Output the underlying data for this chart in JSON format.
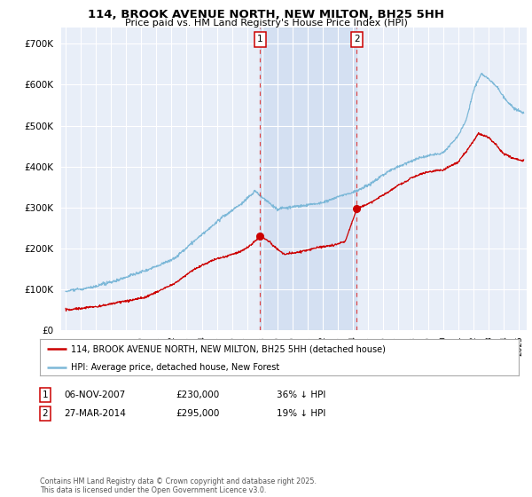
{
  "title": "114, BROOK AVENUE NORTH, NEW MILTON, BH25 5HH",
  "subtitle": "Price paid vs. HM Land Registry's House Price Index (HPI)",
  "ytick_vals": [
    0,
    100000,
    200000,
    300000,
    400000,
    500000,
    600000,
    700000
  ],
  "ylim": [
    0,
    740000
  ],
  "xlim_start": 1994.7,
  "xlim_end": 2025.5,
  "marker1_date": 2007.85,
  "marker2_date": 2014.24,
  "marker1_text": "06-NOV-2007",
  "marker1_price": "£230,000",
  "marker1_hpi": "36% ↓ HPI",
  "marker2_text": "27-MAR-2014",
  "marker2_price": "£295,000",
  "marker2_hpi": "19% ↓ HPI",
  "legend_line1": "114, BROOK AVENUE NORTH, NEW MILTON, BH25 5HH (detached house)",
  "legend_line2": "HPI: Average price, detached house, New Forest",
  "footer": "Contains HM Land Registry data © Crown copyright and database right 2025.\nThis data is licensed under the Open Government Licence v3.0.",
  "hpi_color": "#7db8d8",
  "price_color": "#cc0000",
  "plot_bg": "#e8eef8",
  "grid_color": "#ffffff",
  "marker_shade_color": "#c8d8ee",
  "marker_shade_alpha": 0.6
}
